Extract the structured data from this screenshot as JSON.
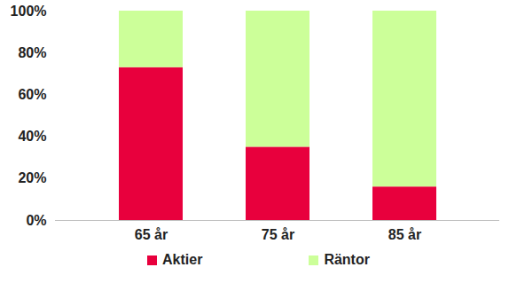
{
  "chart_data": {
    "type": "bar",
    "stacked": true,
    "categories": [
      "65 år",
      "75 år",
      "85 år"
    ],
    "series": [
      {
        "name": "Aktier",
        "color": "#e8003d",
        "values": [
          73,
          35,
          16
        ]
      },
      {
        "name": "Räntor",
        "color": "#ccff99",
        "values": [
          27,
          65,
          84
        ]
      }
    ],
    "ylim": [
      0,
      100
    ],
    "yticks": [
      {
        "value": 0,
        "label": "0%"
      },
      {
        "value": 20,
        "label": "20%"
      },
      {
        "value": 40,
        "label": "40%"
      },
      {
        "value": 60,
        "label": "60%"
      },
      {
        "value": 80,
        "label": "80%"
      },
      {
        "value": 100,
        "label": "100%"
      }
    ],
    "grid": false,
    "legend": "bottom"
  }
}
